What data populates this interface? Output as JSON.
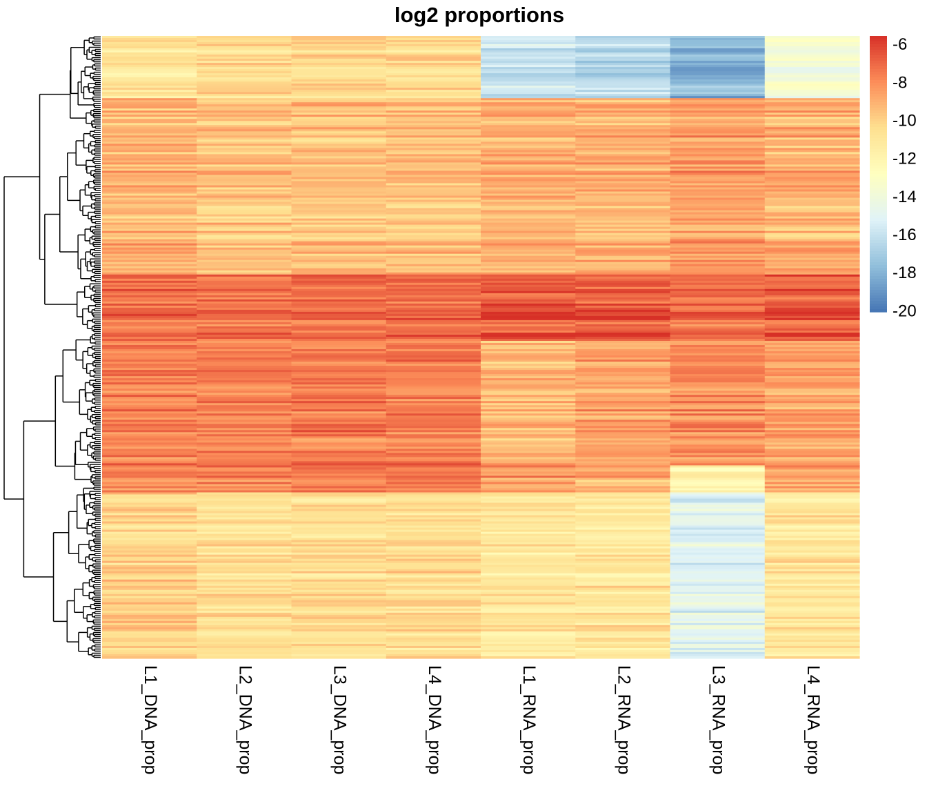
{
  "chart_data": {
    "type": "heatmap",
    "title": "log2 proportions",
    "columns": [
      "L1_DNA_prop",
      "L2_DNA_prop",
      "L3_DNA_prop",
      "L4_DNA_prop",
      "L1_RNA_prop",
      "L2_RNA_prop",
      "L3_RNA_prop",
      "L4_RNA_prop"
    ],
    "color_scale": {
      "min": -20,
      "max": -5.5,
      "ticks": [
        -6,
        -8,
        -10,
        -12,
        -14,
        -16,
        -18,
        -20
      ],
      "colors": [
        "#4575b4",
        "#91bfdb",
        "#e0f3f8",
        "#ffffbf",
        "#fee090",
        "#fc8d59",
        "#d73027"
      ]
    },
    "row_count": 300,
    "row_dendrogram": true,
    "row_groups": [
      {
        "rows": 30,
        "values": [
          -11.0,
          -10.5,
          -10.5,
          -10.5,
          -16.0,
          -16.5,
          -18.0,
          -14.0
        ],
        "note_free": true
      },
      {
        "rows": 85,
        "values": [
          -9.0,
          -9.5,
          -9.5,
          -9.5,
          -9.0,
          -9.0,
          -8.5,
          -9.0
        ]
      },
      {
        "rows": 32,
        "values": [
          -7.0,
          -7.0,
          -7.0,
          -7.0,
          -6.5,
          -6.5,
          -7.0,
          -6.5
        ]
      },
      {
        "rows": 60,
        "values": [
          -7.5,
          -7.5,
          -7.5,
          -7.5,
          -9.0,
          -8.5,
          -8.0,
          -8.5
        ]
      },
      {
        "rows": 13,
        "values": [
          -7.5,
          -7.5,
          -7.5,
          -7.5,
          -8.5,
          -9.0,
          -12.0,
          -8.5
        ]
      },
      {
        "rows": 80,
        "values": [
          -10.0,
          -10.5,
          -10.5,
          -10.5,
          -11.0,
          -11.0,
          -15.0,
          -11.0
        ]
      }
    ]
  }
}
